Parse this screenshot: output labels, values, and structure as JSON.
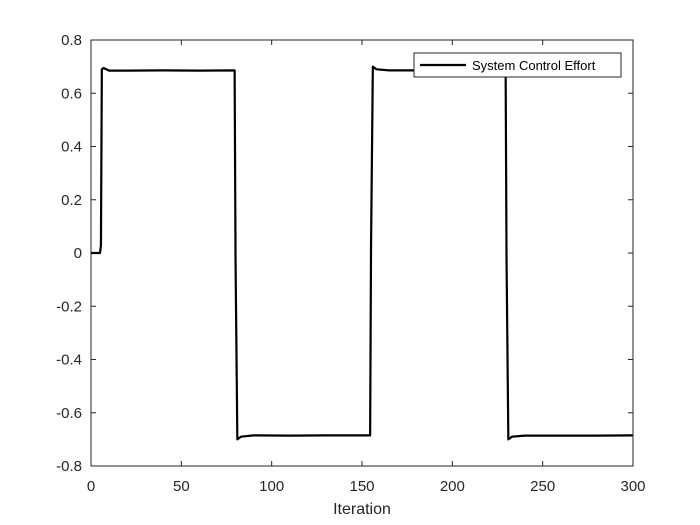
{
  "chart_data": {
    "type": "line",
    "title": "",
    "xlabel": "Iteration",
    "ylabel": "",
    "xlim": [
      0,
      300
    ],
    "ylim": [
      -0.8,
      0.8
    ],
    "xticks": [
      0,
      50,
      100,
      150,
      200,
      250,
      300
    ],
    "xtick_labels": [
      "0",
      "50",
      "100",
      "150",
      "200",
      "250",
      "300"
    ],
    "yticks": [
      0.8,
      0.6,
      0.4,
      0.2,
      0,
      -0.2,
      -0.4,
      -0.6,
      -0.8
    ],
    "ytick_labels": [
      "0.8",
      "0.6",
      "0.4",
      "0.2",
      "0",
      "-0.2",
      "-0.4",
      "-0.6",
      "-0.8"
    ],
    "grid": false,
    "legend_position": "top-right",
    "series": [
      {
        "name": "System Control Effort",
        "color": "#000000",
        "x": [
          0,
          5,
          5.5,
          6,
          7,
          10,
          20,
          40,
          60,
          79.5,
          80,
          81,
          83,
          90,
          110,
          130,
          154.5,
          155,
          156,
          158,
          165,
          185,
          205,
          229.5,
          230,
          231,
          233,
          240,
          260,
          280,
          300
        ],
        "y": [
          0,
          0,
          0.03,
          0.69,
          0.695,
          0.685,
          0.685,
          0.686,
          0.685,
          0.686,
          -0.02,
          -0.7,
          -0.69,
          -0.685,
          -0.686,
          -0.685,
          -0.685,
          0.02,
          0.7,
          0.69,
          0.686,
          0.686,
          0.686,
          0.686,
          -0.02,
          -0.7,
          -0.69,
          -0.686,
          -0.686,
          -0.686,
          -0.685
        ]
      }
    ]
  }
}
